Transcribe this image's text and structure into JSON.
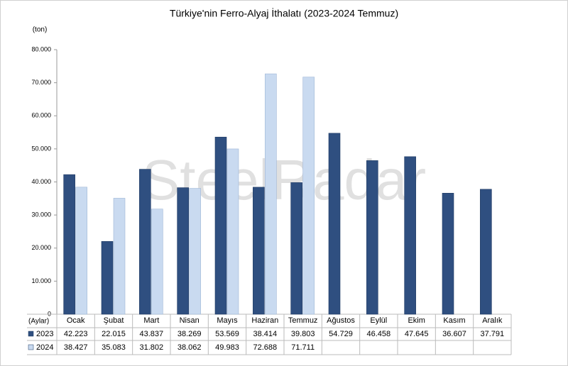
{
  "chart_data": {
    "type": "bar",
    "title": "Türkiye'nin Ferro-Alyaj İthalatı (2023-2024 Temmuz)",
    "y_label": "(ton)",
    "x_label": "(Aylar)",
    "watermark": "SteelRadar",
    "categories": [
      "Ocak",
      "Şubat",
      "Mart",
      "Nisan",
      "Mayıs",
      "Haziran",
      "Temmuz",
      "Ağustos",
      "Eylül",
      "Ekim",
      "Kasım",
      "Aralık"
    ],
    "series": [
      {
        "name": "2023",
        "color": "#2f4f80",
        "values": [
          42223,
          22015,
          43837,
          38269,
          53569,
          38414,
          39803,
          54729,
          46458,
          47645,
          36607,
          37791
        ],
        "value_labels": [
          "42.223",
          "22.015",
          "43.837",
          "38.269",
          "53.569",
          "38.414",
          "39.803",
          "54.729",
          "46.458",
          "47.645",
          "36.607",
          "37.791"
        ]
      },
      {
        "name": "2024",
        "color": "#c9daf0",
        "values": [
          38427,
          35083,
          31802,
          38062,
          49983,
          72688,
          71711,
          null,
          null,
          null,
          null,
          null
        ],
        "value_labels": [
          "38.427",
          "35.083",
          "31.802",
          "38.062",
          "49.983",
          "72.688",
          "71.711",
          null,
          null,
          null,
          null,
          null
        ]
      }
    ],
    "ylim": [
      0,
      80000
    ],
    "yticks": [
      0,
      {
        "value": 10000,
        "label": "10.000"
      },
      {
        "value": 20000,
        "label": "20.000"
      },
      {
        "value": 30000,
        "label": "30.000"
      },
      {
        "value": 40000,
        "label": "40.000"
      },
      {
        "value": 50000,
        "label": "50.000"
      },
      {
        "value": 60000,
        "label": "60.000"
      },
      {
        "value": 70000,
        "label": "70.000"
      },
      {
        "value": 80000,
        "label": "80.000"
      }
    ],
    "grid": false
  }
}
